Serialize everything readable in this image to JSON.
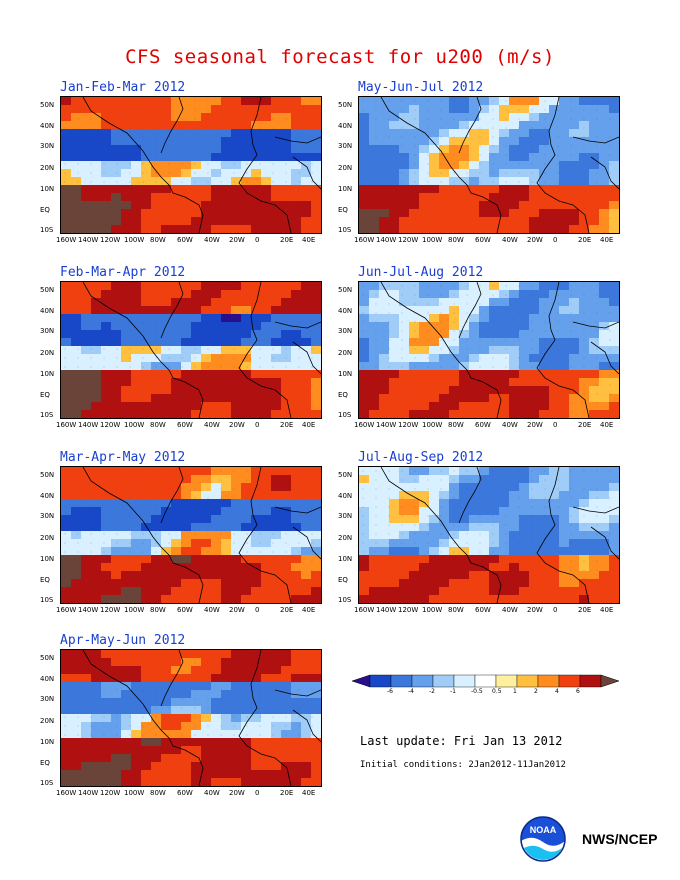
{
  "title": "CFS seasonal forecast for u200 (m/s)",
  "panels": [
    {
      "title": "Jan-Feb-Mar 2012",
      "seed": 1
    },
    {
      "title": "May-Jun-Jul 2012",
      "seed": 5
    },
    {
      "title": "Feb-Mar-Apr 2012",
      "seed": 2
    },
    {
      "title": "Jun-Jul-Aug 2012",
      "seed": 6
    },
    {
      "title": "Mar-Apr-May 2012",
      "seed": 3
    },
    {
      "title": "Jul-Aug-Sep 2012",
      "seed": 7
    },
    {
      "title": "Apr-May-Jun 2012",
      "seed": 4
    }
  ],
  "lat_labels": [
    "50N",
    "40N",
    "30N",
    "20N",
    "10N",
    "EQ",
    "10S"
  ],
  "lon_labels": [
    "160W",
    "140W",
    "120W",
    "100W",
    "80W",
    "60W",
    "40W",
    "20W",
    "0",
    "20E",
    "40E"
  ],
  "legend": {
    "labels": [
      "-6",
      "-4",
      "-2",
      "-1",
      "-0.5",
      "0.5",
      "1",
      "2",
      "4",
      "6"
    ],
    "colors": [
      "#2a0f8c",
      "#1848c8",
      "#3c78dc",
      "#64a0ec",
      "#a0ccf8",
      "#d8f0ff",
      "#ffffff",
      "#fff0a0",
      "#ffc040",
      "#ff8c1e",
      "#f04010",
      "#b01010",
      "#6a4438"
    ]
  },
  "last_update": "Last update: Fri Jan 13 2012",
  "initial_conditions": "Initial conditions: 2Jan2012-11Jan2012",
  "agency": "NWS/NCEP",
  "logo_text": "NOAA"
}
